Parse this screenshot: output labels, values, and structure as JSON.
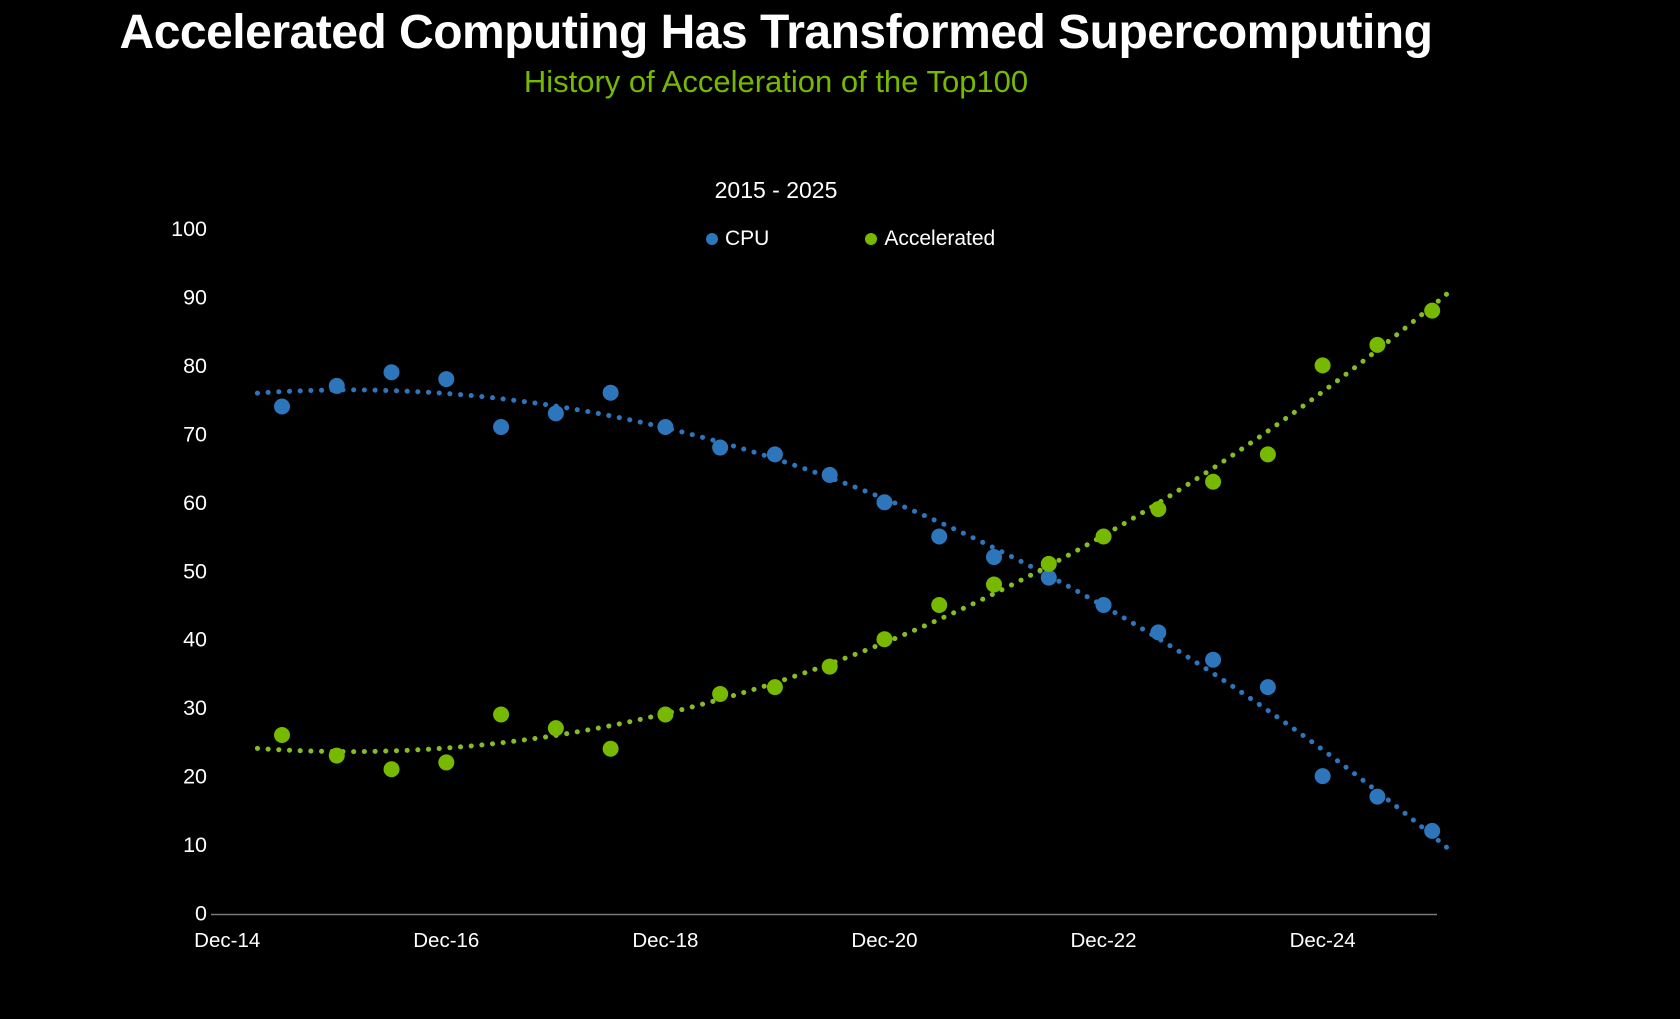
{
  "header": {
    "title": "Accelerated Computing Has Transformed Supercomputing",
    "subtitle": "History of Acceleration of the Top100"
  },
  "colors": {
    "background": "#000000",
    "title_text": "#ffffff",
    "accent_green": "#76B900",
    "cpu_blue": "#2D76BC",
    "accelerated_green": "#76B900",
    "cpu_trend": "#2D76BC",
    "accelerated_trend": "#86BD25",
    "axis_line": "#77787b",
    "tick_text": "#ffffff"
  },
  "legend": {
    "items": [
      {
        "label": "CPU",
        "color": "#2D76BC"
      },
      {
        "label": "Accelerated",
        "color": "#76B900"
      }
    ]
  },
  "chart_data": {
    "type": "scatter",
    "title": "2015 - 2025",
    "xlabel": "",
    "ylabel": "",
    "grid": false,
    "legend_position": "top-center",
    "ylim": [
      0,
      100
    ],
    "y_ticks": [
      0,
      10,
      20,
      30,
      40,
      50,
      60,
      70,
      80,
      90,
      100
    ],
    "x_tick_labels": [
      "Dec-14",
      "Dec-16",
      "Dec-18",
      "Dec-20",
      "Dec-22",
      "Dec-24"
    ],
    "x": [
      "Jun-15",
      "Dec-15",
      "Jun-16",
      "Dec-16",
      "Jun-17",
      "Dec-17",
      "Jun-18",
      "Dec-18",
      "Jun-19",
      "Dec-19",
      "Jun-20",
      "Dec-20",
      "Jun-21",
      "Dec-21",
      "Jun-22",
      "Dec-22",
      "Jun-23",
      "Dec-23",
      "Jun-24",
      "Dec-24",
      "Jun-25",
      "Dec-25"
    ],
    "series": [
      {
        "name": "CPU",
        "color": "#2D76BC",
        "values": [
          74,
          77,
          79,
          78,
          71,
          73,
          76,
          71,
          68,
          67,
          64,
          60,
          55,
          52,
          49,
          45,
          41,
          37,
          33,
          20,
          17,
          12
        ]
      },
      {
        "name": "Accelerated",
        "color": "#76B900",
        "values": [
          26,
          23,
          21,
          22,
          29,
          27,
          24,
          29,
          32,
          33,
          36,
          40,
          45,
          48,
          51,
          55,
          59,
          63,
          67,
          80,
          83,
          88
        ]
      }
    ],
    "trendline": "dotted quadratic fit per series, extended slightly beyond data range"
  }
}
